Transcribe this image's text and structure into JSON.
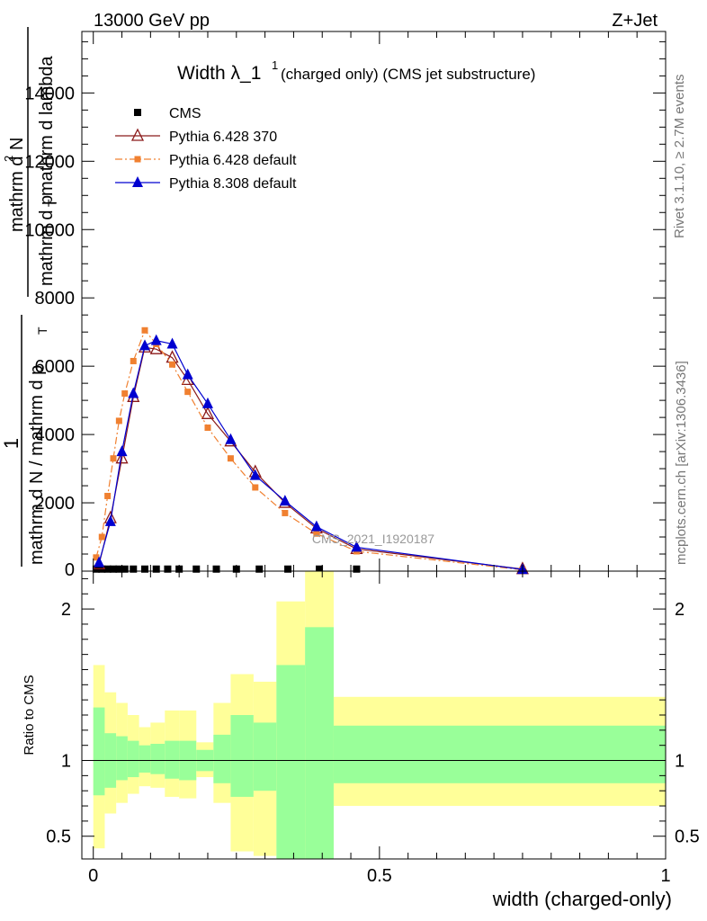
{
  "header": {
    "left": "13000 GeV pp",
    "right": "Z+Jet"
  },
  "side": {
    "rivet": "Rivet 3.1.10, ≥ 2.7M events",
    "mcplots": "mcplots.cern.ch [arXiv:1306.3436]"
  },
  "watermark": "CMS_2021_I1920187",
  "chart_data": [
    {
      "type": "line",
      "title_main": "Width λ_1",
      "title_sup": "1",
      "title_rest": "(charged only) (CMS jet substructure)",
      "ylabel_parts": {
        "one": "1",
        "den_outer": "mathrm d N / mathrm d p",
        "den_outer_sub": "T",
        "num": "mathrm d",
        "num_sup": "2",
        "num_N": "N",
        "den_inner": "mathrm d p",
        "den_inner_sub": "T",
        "den_inner_rest": "mathrm d lambda"
      },
      "ylim": [
        0,
        15800
      ],
      "yticks": [
        {
          "v": 2000,
          "label": "2000"
        },
        {
          "v": 4000,
          "label": "4000"
        },
        {
          "v": 6000,
          "label": "6000"
        },
        {
          "v": 8000,
          "label": "8000"
        },
        {
          "v": 10000,
          "label": "10000"
        },
        {
          "v": 12000,
          "label": "12000"
        },
        {
          "v": 14000,
          "label": "14000"
        }
      ],
      "legend_position": "top-left",
      "series": [
        {
          "name": "CMS",
          "color": "#000000",
          "marker": "square",
          "x": [
            0.005,
            0.015,
            0.025,
            0.035,
            0.045,
            0.055,
            0.07,
            0.09,
            0.11,
            0.13,
            0.15,
            0.18,
            0.215,
            0.25,
            0.29,
            0.34,
            0.395,
            0.46
          ],
          "y": [
            60,
            60,
            60,
            60,
            60,
            60,
            60,
            60,
            60,
            60,
            60,
            60,
            60,
            60,
            60,
            60,
            60,
            60
          ]
        },
        {
          "name": "Pythia 6.428 370",
          "color": "#8b1a1a",
          "marker": "triangle-open",
          "dash": "",
          "x": [
            0.01,
            0.03,
            0.05,
            0.07,
            0.09,
            0.11,
            0.138,
            0.165,
            0.2,
            0.24,
            0.283,
            0.335,
            0.39,
            0.46,
            0.75
          ],
          "y": [
            200,
            1550,
            3300,
            5100,
            6550,
            6500,
            6250,
            5600,
            4600,
            3800,
            2900,
            2000,
            1250,
            650,
            60
          ]
        },
        {
          "name": "Pythia 6.428 default",
          "color": "#f08030",
          "marker": "square-small",
          "dash": "8,3,2,3",
          "x": [
            0.005,
            0.015,
            0.025,
            0.035,
            0.045,
            0.055,
            0.07,
            0.09,
            0.11,
            0.138,
            0.165,
            0.2,
            0.24,
            0.283,
            0.335,
            0.39,
            0.46,
            0.75
          ],
          "y": [
            400,
            1000,
            2200,
            3300,
            4400,
            5200,
            6150,
            7050,
            6650,
            6050,
            5250,
            4200,
            3300,
            2450,
            1700,
            1100,
            580,
            40
          ]
        },
        {
          "name": "Pythia 8.308 default",
          "color": "#0000d0",
          "marker": "triangle",
          "dash": "",
          "x": [
            0.01,
            0.03,
            0.05,
            0.07,
            0.09,
            0.11,
            0.138,
            0.165,
            0.2,
            0.24,
            0.283,
            0.335,
            0.39,
            0.46,
            0.75
          ],
          "y": [
            250,
            1450,
            3500,
            5200,
            6600,
            6750,
            6650,
            5750,
            4900,
            3850,
            2800,
            2050,
            1300,
            700,
            50
          ]
        }
      ]
    },
    {
      "type": "area",
      "ylabel": "Ratio to CMS",
      "xlabel": "width (charged-only)",
      "ylim": [
        0.35,
        2.25
      ],
      "xlim": [
        -0.02,
        1.0
      ],
      "yticks": [
        {
          "v": 0.5,
          "label": "0.5"
        },
        {
          "v": 1,
          "label": "1"
        },
        {
          "v": 2,
          "label": "2"
        }
      ],
      "xticks": [
        {
          "v": 0,
          "label": "0"
        },
        {
          "v": 0.5,
          "label": "0.5"
        },
        {
          "v": 1,
          "label": "1"
        }
      ],
      "band_colors": {
        "outer": "#ffff99",
        "inner": "#99ff99",
        "line": "#000000"
      },
      "bins": [
        {
          "x0": 0.0,
          "x1": 0.02,
          "outer": [
            0.42,
            1.63
          ],
          "inner": [
            0.77,
            1.35
          ]
        },
        {
          "x0": 0.02,
          "x1": 0.04,
          "outer": [
            0.65,
            1.45
          ],
          "inner": [
            0.82,
            1.18
          ]
        },
        {
          "x0": 0.04,
          "x1": 0.06,
          "outer": [
            0.72,
            1.38
          ],
          "inner": [
            0.87,
            1.16
          ]
        },
        {
          "x0": 0.06,
          "x1": 0.08,
          "outer": [
            0.78,
            1.3
          ],
          "inner": [
            0.89,
            1.13
          ]
        },
        {
          "x0": 0.08,
          "x1": 0.1,
          "outer": [
            0.83,
            1.22
          ],
          "inner": [
            0.92,
            1.1
          ]
        },
        {
          "x0": 0.1,
          "x1": 0.125,
          "outer": [
            0.82,
            1.25
          ],
          "inner": [
            0.91,
            1.11
          ]
        },
        {
          "x0": 0.125,
          "x1": 0.15,
          "outer": [
            0.76,
            1.33
          ],
          "inner": [
            0.88,
            1.13
          ]
        },
        {
          "x0": 0.15,
          "x1": 0.18,
          "outer": [
            0.75,
            1.33
          ],
          "inner": [
            0.87,
            1.13
          ]
        },
        {
          "x0": 0.18,
          "x1": 0.21,
          "outer": [
            0.89,
            1.12
          ],
          "inner": [
            0.93,
            1.07
          ]
        },
        {
          "x0": 0.21,
          "x1": 0.24,
          "outer": [
            0.72,
            1.38
          ],
          "inner": [
            0.85,
            1.17
          ]
        },
        {
          "x0": 0.24,
          "x1": 0.28,
          "outer": [
            0.4,
            1.57
          ],
          "inner": [
            0.76,
            1.3
          ]
        },
        {
          "x0": 0.28,
          "x1": 0.32,
          "outer": [
            0.37,
            1.52
          ],
          "inner": [
            0.8,
            1.25
          ]
        },
        {
          "x0": 0.32,
          "x1": 0.37,
          "outer": [
            0.42,
            2.05
          ],
          "inner": [
            0.35,
            1.63
          ]
        },
        {
          "x0": 0.37,
          "x1": 0.42,
          "outer": [
            0.35,
            2.25
          ],
          "inner": [
            0.35,
            1.88
          ]
        },
        {
          "x0": 0.42,
          "x1": 1.0,
          "outer": [
            0.7,
            1.42
          ],
          "inner": [
            0.85,
            1.23
          ]
        }
      ]
    }
  ]
}
